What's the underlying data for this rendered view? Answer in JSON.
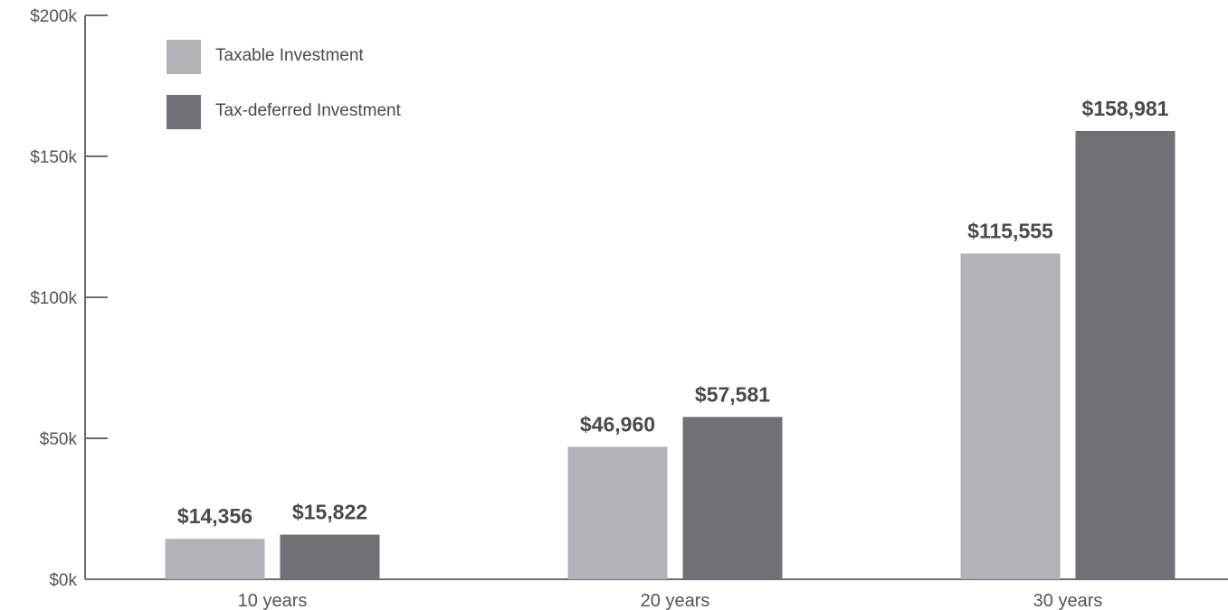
{
  "chart_data": {
    "type": "bar",
    "categories": [
      "10 years",
      "20 years",
      "30 years"
    ],
    "series": [
      {
        "name": "Taxable Investment",
        "color": "#b3b2b6",
        "values": [
          14356,
          46960,
          115555
        ],
        "labels": [
          "$14,356",
          "$46,960",
          "$115,555"
        ]
      },
      {
        "name": "Tax-deferred Investment",
        "color": "#717074",
        "values": [
          15822,
          57581,
          158981
        ],
        "labels": [
          "$15,822",
          "$57,581",
          "$158,981"
        ]
      }
    ],
    "ylim": [
      0,
      200000
    ],
    "yticks": [
      0,
      50000,
      100000,
      150000,
      200000
    ],
    "ytick_labels": [
      "$0k",
      "$50k",
      "$100k",
      "$150k",
      "$200k"
    ],
    "grid": false,
    "legend_position": "top-left",
    "axis_color": "#6d6d6f"
  }
}
